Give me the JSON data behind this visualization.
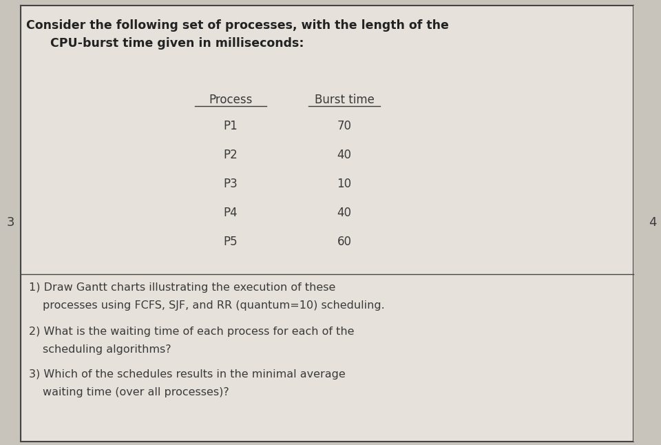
{
  "bg_color": "#c8c3bb",
  "cell_bg": "#e6e1da",
  "border_color": "#444444",
  "title_line1": "Consider the following set of processes, with the length of the",
  "title_line2": "CPU-burst time given in milliseconds:",
  "col_headers": [
    "Process",
    "Burst time"
  ],
  "processes": [
    "P1",
    "P2",
    "P3",
    "P4",
    "P5"
  ],
  "burst_times": [
    70,
    40,
    10,
    40,
    60
  ],
  "q1_line1": "1) Draw Gantt charts illustrating the execution of these",
  "q1_line2": "   processes using FCFS, SJF, and RR (quantum=10) scheduling.",
  "q2_line1": "2) What is the waiting time of each process for each of the",
  "q2_line2": "   scheduling algorithms?",
  "q3_line1": "3) Which of the schedules results in the minimal average",
  "q3_line2": "   waiting time (over all processes)?",
  "left_number": "3",
  "right_number": "4",
  "text_color": "#3a3a3a",
  "header_color": "#222222",
  "font_size_title": 12.5,
  "font_size_body": 11.5,
  "font_size_table": 12,
  "font_size_numbers": 13
}
